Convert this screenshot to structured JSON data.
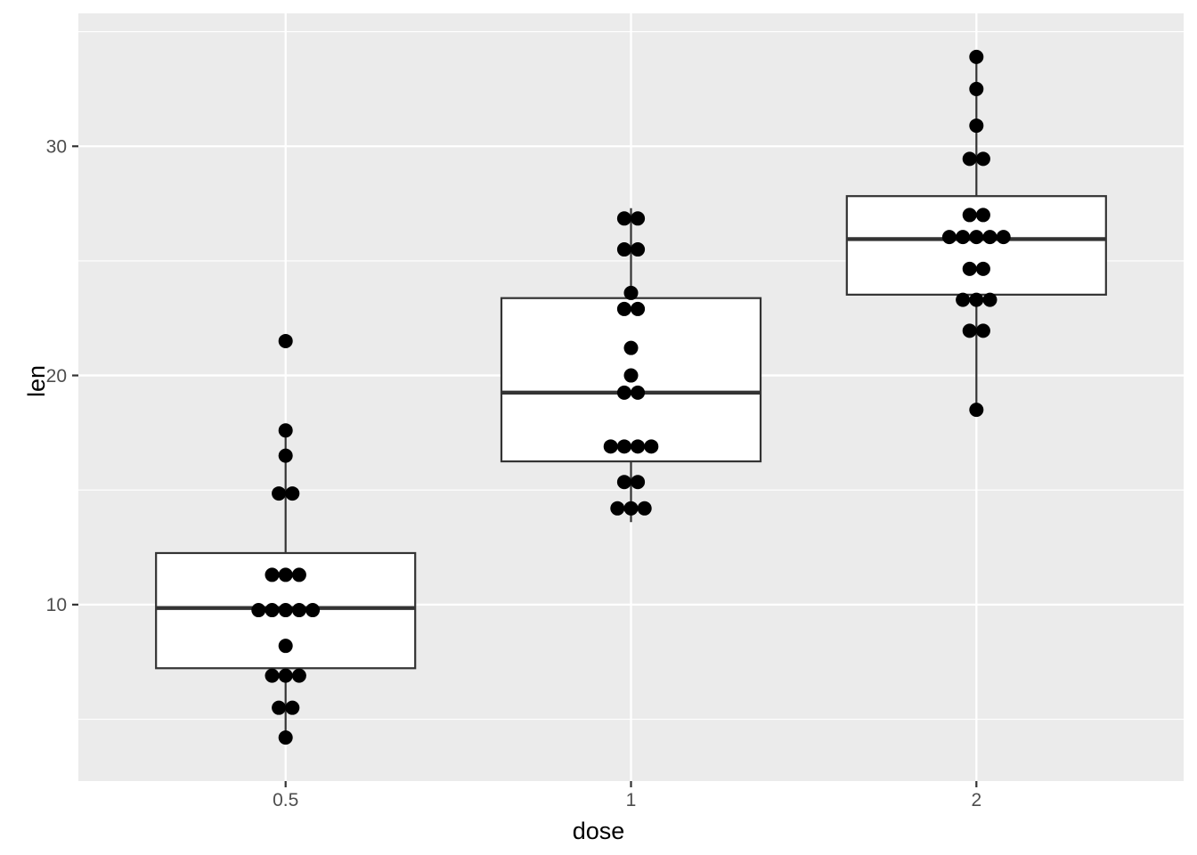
{
  "chart_data": {
    "type": "boxplot",
    "title": "",
    "xlabel": "dose",
    "ylabel": "len",
    "categories": [
      "0.5",
      "1",
      "2"
    ],
    "yticks": [
      10,
      20,
      30
    ],
    "yticks_minor": [
      5,
      15,
      25,
      35
    ],
    "ylim": [
      2.3,
      35.8
    ],
    "grid": "major-and-minor-white-on-grey",
    "legend": "none",
    "series": [
      {
        "dose": "0.5",
        "values": [
          4.2,
          5.2,
          5.8,
          6.4,
          7.0,
          7.3,
          8.2,
          9.4,
          9.7,
          9.7,
          10.0,
          10.0,
          11.2,
          11.2,
          11.5,
          14.5,
          15.2,
          16.5,
          17.6,
          21.5
        ],
        "box": {
          "q1": 7.225,
          "median": 9.85,
          "q3": 12.25,
          "whisker_low": 4.2,
          "whisker_high": 17.6
        },
        "dot_bins": [
          {
            "y": 4.2,
            "n": 1
          },
          {
            "y": 5.5,
            "n": 2
          },
          {
            "y": 6.9,
            "n": 3
          },
          {
            "y": 8.2,
            "n": 1
          },
          {
            "y": 9.76,
            "n": 5
          },
          {
            "y": 11.3,
            "n": 3
          },
          {
            "y": 14.85,
            "n": 2
          },
          {
            "y": 16.5,
            "n": 1
          },
          {
            "y": 17.6,
            "n": 1
          },
          {
            "y": 21.5,
            "n": 1
          }
        ]
      },
      {
        "dose": "1",
        "values": [
          13.6,
          14.5,
          14.5,
          15.2,
          15.5,
          16.5,
          16.5,
          17.3,
          17.3,
          18.8,
          19.7,
          20.0,
          21.2,
          22.5,
          23.3,
          23.6,
          25.2,
          25.8,
          26.4,
          27.3
        ],
        "box": {
          "q1": 16.25,
          "median": 19.25,
          "q3": 23.375,
          "whisker_low": 13.6,
          "whisker_high": 27.3
        },
        "dot_bins": [
          {
            "y": 14.2,
            "n": 3
          },
          {
            "y": 15.35,
            "n": 2
          },
          {
            "y": 16.9,
            "n": 4
          },
          {
            "y": 19.25,
            "n": 2
          },
          {
            "y": 20.0,
            "n": 1
          },
          {
            "y": 21.2,
            "n": 1
          },
          {
            "y": 22.9,
            "n": 2
          },
          {
            "y": 23.6,
            "n": 1
          },
          {
            "y": 25.5,
            "n": 2
          },
          {
            "y": 26.85,
            "n": 2
          }
        ]
      },
      {
        "dose": "2",
        "values": [
          18.5,
          21.5,
          22.4,
          23.0,
          23.3,
          23.6,
          24.5,
          24.8,
          25.5,
          25.5,
          26.4,
          26.4,
          26.4,
          26.7,
          27.3,
          29.4,
          29.5,
          30.9,
          32.5,
          33.9
        ],
        "box": {
          "q1": 23.525,
          "median": 25.95,
          "q3": 27.825,
          "whisker_low": 18.5,
          "whisker_high": 33.9
        },
        "dot_bins": [
          {
            "y": 18.5,
            "n": 1
          },
          {
            "y": 21.95,
            "n": 2
          },
          {
            "y": 23.3,
            "n": 3
          },
          {
            "y": 24.65,
            "n": 2
          },
          {
            "y": 26.04,
            "n": 5
          },
          {
            "y": 27.0,
            "n": 2
          },
          {
            "y": 29.45,
            "n": 2
          },
          {
            "y": 30.9,
            "n": 1
          },
          {
            "y": 32.5,
            "n": 1
          },
          {
            "y": 33.9,
            "n": 1
          }
        ]
      }
    ],
    "style": {
      "panel_bg": "#EBEBEB",
      "grid_major": "#FFFFFF",
      "grid_minor": "#FFFFFF",
      "box_fill": "#FFFFFF",
      "box_border": "#333333",
      "median_color": "#333333",
      "whisker_color": "#333333",
      "dot_color": "#000000",
      "tick_mark_color": "#333333",
      "tick_label_color": "#4D4D4D",
      "axis_title_color": "#000000"
    }
  },
  "axes": {
    "x_title": "dose",
    "y_title": "len",
    "x_tick_labels": [
      "0.5",
      "1",
      "2"
    ],
    "y_tick_labels": [
      "10",
      "20",
      "30"
    ]
  }
}
